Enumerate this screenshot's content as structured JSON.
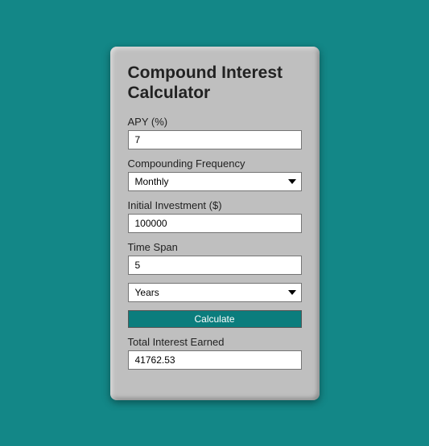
{
  "colors": {
    "page_background": "#138787",
    "card_background": "#bfbfbf",
    "button_background": "#0b7d7d",
    "button_text": "#ffffff",
    "input_background": "#ffffff",
    "input_border": "#747474",
    "text": "#222222"
  },
  "title": "Compound Interest Calculator",
  "apy": {
    "label": "APY (%)",
    "value": "7"
  },
  "frequency": {
    "label": "Compounding Frequency",
    "selected": "Monthly"
  },
  "initial": {
    "label": "Initial Investment ($)",
    "value": "100000"
  },
  "timespan": {
    "label": "Time Span",
    "value": "5"
  },
  "unit": {
    "selected": "Years"
  },
  "calculate": {
    "label": "Calculate"
  },
  "result": {
    "label": "Total Interest Earned",
    "value": "41762.53"
  }
}
